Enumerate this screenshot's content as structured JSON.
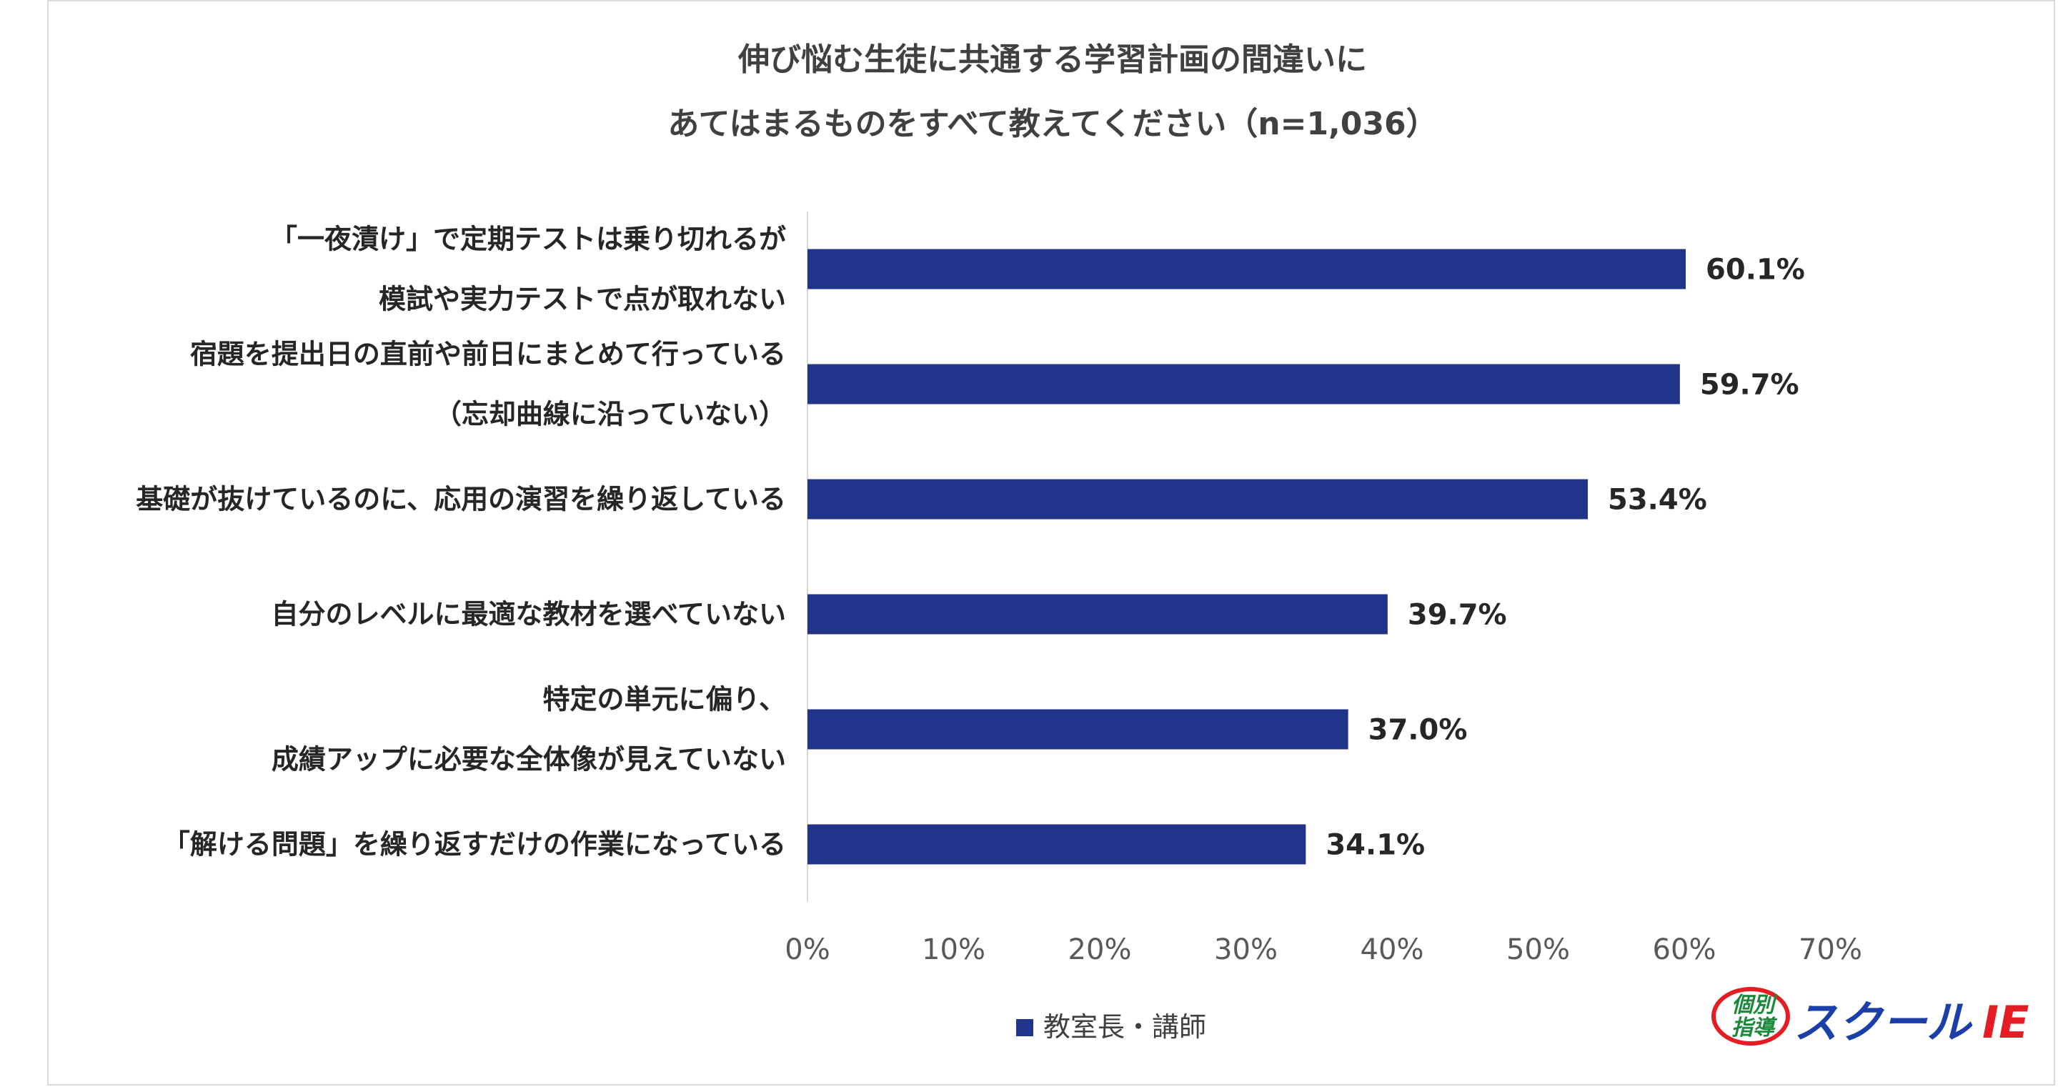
{
  "chart_data": {
    "type": "bar",
    "orientation": "horizontal",
    "title": [
      "伸び悩む生徒に共通する学習計画の間違いに",
      "あてはまるものをすべて教えてください（n=1,036）"
    ],
    "categories": [
      [
        "「一夜漬け」で定期テストは乗り切れるが",
        "模試や実力テストで点が取れない"
      ],
      [
        "宿題を提出日の直前や前日にまとめて行っている",
        "（忘却曲線に沿っていない）"
      ],
      [
        "基礎が抜けているのに、応用の演習を繰り返している"
      ],
      [
        "自分のレベルに最適な教材を選べていない"
      ],
      [
        "特定の単元に偏り、",
        "成績アップに必要な全体像が見えていない"
      ],
      [
        "「解ける問題」を繰り返すだけの作業になっている"
      ]
    ],
    "series": [
      {
        "name": "教室長・講師",
        "values": [
          60.1,
          59.7,
          53.4,
          39.7,
          37.0,
          34.1
        ],
        "value_labels": [
          "60.1%",
          "59.7%",
          "53.4%",
          "39.7%",
          "37.0%",
          "34.1%"
        ],
        "color": "#203589"
      }
    ],
    "xlim": [
      0,
      70
    ],
    "xticks": [
      "0%",
      "10%",
      "20%",
      "30%",
      "40%",
      "50%",
      "60%",
      "70%"
    ],
    "grid": false,
    "legend_position": "bottom"
  },
  "logo": {
    "small_top": "個別",
    "small_bottom": "指導",
    "main": "スクール",
    "mark": "IE"
  }
}
